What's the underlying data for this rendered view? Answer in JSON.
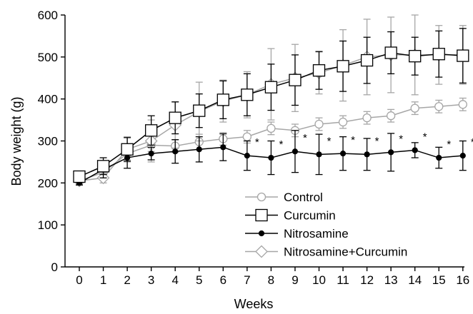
{
  "chart_data": {
    "type": "line",
    "xlabel": "Weeks",
    "ylabel": "Body weight (g)",
    "xlim": [
      -0.5,
      16.5
    ],
    "ylim": [
      0,
      600
    ],
    "x_ticks": [
      "0",
      "1",
      "2",
      "3",
      "4",
      "5",
      "6",
      "7",
      "8",
      "9",
      "10",
      "11",
      "12",
      "13",
      "14",
      "15",
      "16"
    ],
    "y_ticks": [
      "0",
      "100",
      "200",
      "300",
      "400",
      "500",
      "600"
    ],
    "legend_position": "lower-right",
    "grid": false,
    "significance_marker": "*",
    "significance_weeks": [
      7,
      8,
      9,
      10,
      11,
      12,
      13,
      14,
      15,
      16
    ],
    "x": [
      0,
      1,
      2,
      3,
      4,
      5,
      6,
      7,
      8,
      9,
      10,
      11,
      12,
      13,
      14,
      15,
      16
    ],
    "series": [
      {
        "name": "Control",
        "color": "#a6a6a6",
        "marker": "circle",
        "values": [
          205,
          225,
          270,
          290,
          288,
          298,
          305,
          310,
          330,
          325,
          340,
          345,
          355,
          360,
          378,
          382,
          387
        ],
        "error": [
          8,
          12,
          15,
          15,
          15,
          18,
          15,
          15,
          15,
          15,
          15,
          15,
          15,
          15,
          15,
          15,
          15
        ]
      },
      {
        "name": "Curcumin",
        "color": "#000000",
        "marker": "square",
        "values": [
          215,
          240,
          280,
          325,
          355,
          372,
          398,
          410,
          428,
          445,
          468,
          478,
          492,
          510,
          502,
          507,
          503
        ],
        "error": [
          10,
          20,
          28,
          35,
          38,
          40,
          45,
          50,
          55,
          60,
          45,
          60,
          55,
          50,
          45,
          55,
          65
        ]
      },
      {
        "name": "Nitrosamine",
        "color": "#000000",
        "marker": "dot",
        "values": [
          200,
          232,
          260,
          270,
          275,
          280,
          285,
          265,
          260,
          275,
          268,
          270,
          268,
          273,
          278,
          260,
          265
        ],
        "error": [
          5,
          20,
          25,
          15,
          28,
          30,
          32,
          35,
          40,
          50,
          48,
          40,
          38,
          45,
          18,
          25,
          35
        ]
      },
      {
        "name": "Nitrosamine+Curcumin",
        "color": "#a6a6a6",
        "marker": "diamond",
        "values": [
          205,
          212,
          280,
          300,
          338,
          370,
          395,
          410,
          435,
          450,
          462,
          480,
          500,
          505,
          505,
          505,
          505
        ],
        "error": [
          8,
          12,
          30,
          50,
          55,
          70,
          50,
          55,
          85,
          80,
          50,
          85,
          90,
          90,
          95,
          70,
          70
        ]
      }
    ]
  }
}
